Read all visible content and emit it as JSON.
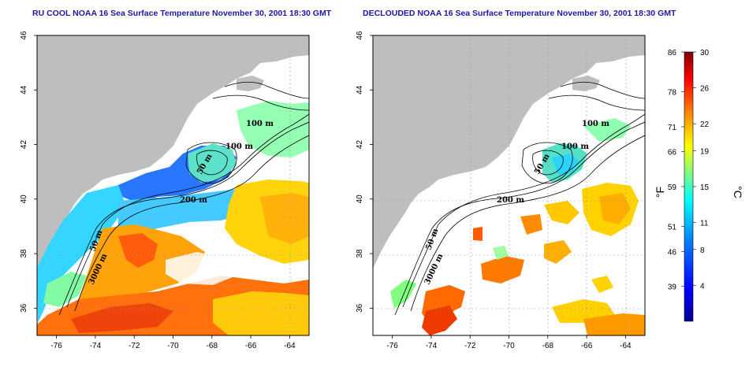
{
  "panels": [
    {
      "title": "RU COOL NOAA 16 Sea Surface Temperature November 30, 2001 18:30 GMT",
      "contour_labels": [
        "100 m",
        "100 m",
        "50 m",
        "200 m",
        "50 m",
        "3000 m"
      ]
    },
    {
      "title": "DECLOUDED NOAA 16 Sea Surface Temperature November 30, 2001 18:30 GMT",
      "contour_labels": [
        "100 m",
        "100 m",
        "50 m",
        "200 m",
        "50 m",
        "3000 m"
      ]
    }
  ],
  "axes": {
    "x_ticks": [
      "-76",
      "-74",
      "-72",
      "-70",
      "-68",
      "-66",
      "-64"
    ],
    "x_values": [
      -76,
      -74,
      -72,
      -70,
      -68,
      -66,
      -64
    ],
    "x_range": [
      -77.0,
      -63.0
    ],
    "y_ticks": [
      "36",
      "38",
      "40",
      "42",
      "44",
      "46"
    ],
    "y_values": [
      36,
      38,
      40,
      42,
      44,
      46
    ],
    "y_range": [
      35.0,
      46.0
    ]
  },
  "colorbar": {
    "fahrenheit_unit": "°F",
    "celsius_unit": "°C",
    "fahrenheit_labels": [
      "86",
      "78",
      "71",
      "66",
      "59",
      "51",
      "46",
      "39"
    ],
    "fahrenheit_values": [
      86,
      78,
      71,
      66,
      59,
      51,
      46,
      39
    ],
    "celsius_labels": [
      "30",
      "26",
      "22",
      "19",
      "15",
      "11",
      "8",
      "4"
    ],
    "celsius_values": [
      30,
      26,
      22,
      19,
      15,
      11,
      8,
      4
    ],
    "celsius_range": [
      0,
      30
    ],
    "colors": [
      "#00008f",
      "#0000ff",
      "#0080ff",
      "#00ffff",
      "#80ff80",
      "#ffff00",
      "#ff8000",
      "#ff0000",
      "#800000"
    ]
  },
  "colors": {
    "land": "#bebebe",
    "title": "#1a1aa0"
  }
}
